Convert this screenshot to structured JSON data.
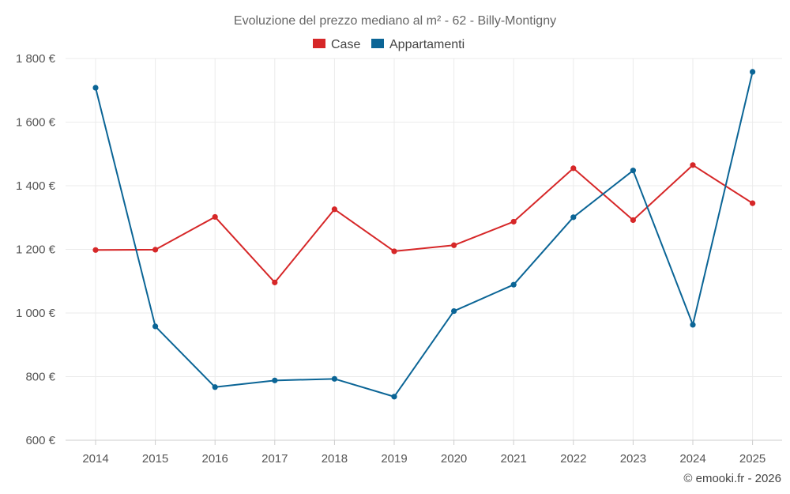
{
  "chart_data": {
    "type": "line",
    "title": "Evoluzione del prezzo mediano al m² - 62 - Billy-Montigny",
    "categories": [
      "2014",
      "2015",
      "2016",
      "2017",
      "2018",
      "2019",
      "2020",
      "2021",
      "2022",
      "2023",
      "2024",
      "2025"
    ],
    "series": [
      {
        "name": "Case",
        "color": "#d62728",
        "values": [
          1198,
          1199,
          1302,
          1096,
          1326,
          1194,
          1213,
          1287,
          1455,
          1292,
          1465,
          1345
        ]
      },
      {
        "name": "Appartamenti",
        "color": "#0b6596",
        "values": [
          1708,
          958,
          767,
          788,
          793,
          737,
          1006,
          1089,
          1301,
          1448,
          963,
          1758
        ]
      }
    ],
    "ylim": [
      600,
      1800
    ],
    "yticks": [
      600,
      800,
      1000,
      1200,
      1400,
      1600,
      1800
    ],
    "ytick_labels": [
      "600 €",
      "800 €",
      "1 000 €",
      "1 200 €",
      "1 400 €",
      "1 600 €",
      "1 800 €"
    ],
    "xlabel": "",
    "ylabel": "",
    "grid": true,
    "legend_position": "top-center"
  },
  "credit": "© emooki.fr - 2026"
}
